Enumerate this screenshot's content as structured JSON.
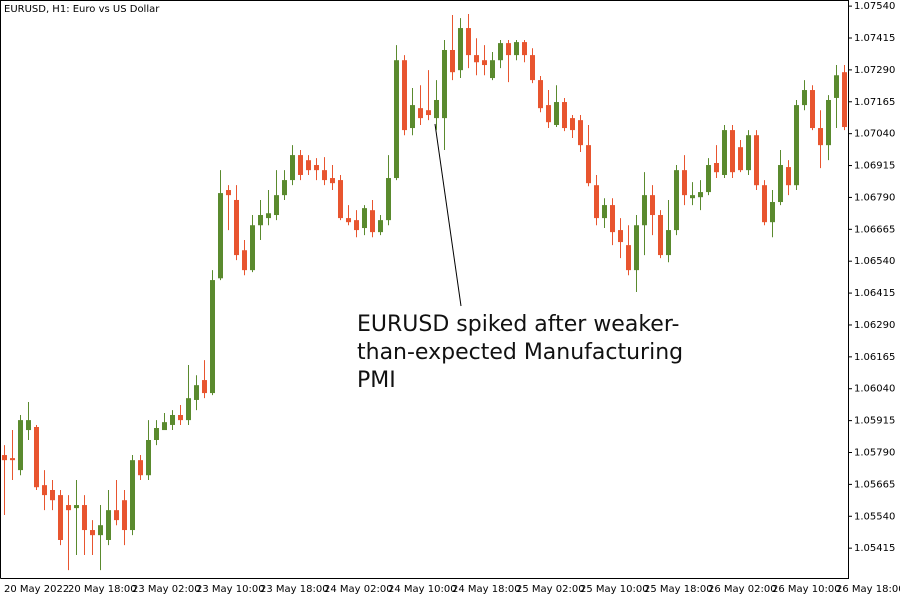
{
  "chart_data": {
    "type": "candlestick",
    "title": "EURUSD, H1:  Euro vs US Dollar",
    "annotation": [
      "EURUSD spiked after weaker-",
      "than-expected Manufacturing",
      "PMI"
    ],
    "up_color": "#5a8a2e",
    "down_color": "#e8552f",
    "categories": [
      "20 May 2022",
      null,
      null,
      null,
      null,
      null,
      null,
      null,
      "20 May 18:00",
      null,
      null,
      null,
      null,
      null,
      null,
      null,
      "23 May 02:00",
      null,
      null,
      null,
      null,
      null,
      null,
      null,
      "23 May 10:00",
      null,
      null,
      null,
      null,
      null,
      null,
      null,
      "23 May 18:00",
      null,
      null,
      null,
      null,
      null,
      null,
      null,
      "24 May 02:00",
      null,
      null,
      null,
      null,
      null,
      null,
      null,
      "24 May 10:00",
      null,
      null,
      null,
      null,
      null,
      null,
      null,
      "24 May 18:00",
      null,
      null,
      null,
      null,
      null,
      null,
      null,
      "25 May 02:00",
      null,
      null,
      null,
      null,
      null,
      null,
      null,
      "25 May 10:00",
      null,
      null,
      null,
      null,
      null,
      null,
      null,
      "25 May 18:00",
      null,
      null,
      null,
      null,
      null,
      null,
      null,
      "26 May 02:00",
      null,
      null,
      null,
      null,
      null,
      null,
      null,
      "26 May 10:00",
      null,
      null,
      null,
      null,
      null,
      null,
      null,
      "26 May 18:00",
      null
    ],
    "open": [
      1.0578,
      1.05768,
      1.05721,
      1.05878,
      1.0589,
      1.05662,
      1.05643,
      1.05623,
      1.05584,
      1.05572,
      1.05584,
      1.05486,
      1.05466,
      1.05447,
      1.05564,
      1.05603,
      1.05486,
      1.0576,
      1.05701,
      1.05839,
      1.05878,
      1.05898,
      1.05937,
      1.05917,
      1.05996,
      1.06074,
      1.06023,
      1.06473,
      1.06819,
      1.0678,
      1.06583,
      1.06505,
      1.06681,
      1.06709,
      1.06721,
      1.06799,
      1.06858,
      1.06956,
      1.06936,
      1.06917,
      1.06897,
      1.06866,
      1.06858,
      1.06709,
      1.06701,
      1.0667,
      1.0674,
      1.06654,
      1.06701,
      1.06866,
      1.07328,
      1.07062,
      1.0714,
      1.07132,
      1.07101,
      1.07101,
      1.07368,
      1.07289,
      1.07454,
      1.07348,
      1.07328,
      1.07258,
      1.07328,
      1.07395,
      1.07348,
      1.07399,
      1.07348,
      1.0725,
      1.07152,
      1.07074,
      1.07164,
      1.07101,
      1.07093,
      1.06995,
      1.06838,
      1.06709,
      1.0676,
      1.06662,
      1.06603,
      1.06505,
      1.06681,
      1.06799,
      1.06721,
      1.06564,
      1.06662,
      1.06897,
      1.06787,
      1.06791,
      1.06811,
      1.06925,
      1.06878,
      1.07054,
      1.06987,
      1.06897,
      1.07034,
      1.06838,
      1.06693,
      1.06772,
      1.06909,
      1.06838,
      1.07152,
      1.07211,
      1.07062,
      1.06995,
      1.0718,
      1.07281
    ],
    "high": [
      1.05819,
      1.05878,
      1.05937,
      1.05988,
      1.05898,
      1.05721,
      1.05682,
      1.05643,
      1.05623,
      1.05682,
      1.05623,
      1.05525,
      1.05584,
      1.05643,
      1.05682,
      1.05643,
      1.0578,
      1.0578,
      1.05917,
      1.05917,
      1.05945,
      1.05956,
      1.05976,
      1.06133,
      1.06093,
      1.06152,
      1.06505,
      1.06897,
      1.06838,
      1.06838,
      1.06623,
      1.06721,
      1.0678,
      1.06819,
      1.06897,
      1.06897,
      1.06995,
      1.06976,
      1.06956,
      1.06944,
      1.06948,
      1.06917,
      1.06878,
      1.0676,
      1.0674,
      1.0676,
      1.0678,
      1.06721,
      1.06956,
      1.07387,
      1.07348,
      1.07219,
      1.0723,
      1.07289,
      1.0725,
      1.07407,
      1.07505,
      1.07493,
      1.07509,
      1.07414,
      1.07387,
      1.0736,
      1.07407,
      1.07407,
      1.07407,
      1.07407,
      1.07375,
      1.07266,
      1.07211,
      1.0723,
      1.0718,
      1.07113,
      1.07113,
      1.07074,
      1.06878,
      1.06787,
      1.06787,
      1.06709,
      1.06681,
      1.06721,
      1.06889,
      1.06838,
      1.0674,
      1.0678,
      1.06917,
      1.06956,
      1.0685,
      1.06858,
      1.06944,
      1.06995,
      1.07074,
      1.07074,
      1.07015,
      1.07054,
      1.07054,
      1.06858,
      1.06819,
      1.06976,
      1.06936,
      1.07172,
      1.0725,
      1.0723,
      1.07132,
      1.07191,
      1.07309,
      1.07309
    ],
    "low": [
      1.05545,
      1.05682,
      1.05701,
      1.05839,
      1.05643,
      1.05564,
      1.05564,
      1.05427,
      1.05329,
      1.05388,
      1.05388,
      1.05388,
      1.05329,
      1.05427,
      1.05505,
      1.05427,
      1.05466,
      1.05682,
      1.05682,
      1.05819,
      1.05878,
      1.05878,
      1.05898,
      1.05898,
      1.05956,
      1.06003,
      1.06015,
      1.06466,
      1.06662,
      1.06544,
      1.06485,
      1.06497,
      1.06623,
      1.06681,
      1.06701,
      1.0678,
      1.06838,
      1.06858,
      1.06878,
      1.06858,
      1.06838,
      1.06819,
      1.06701,
      1.06681,
      1.06634,
      1.06642,
      1.06634,
      1.06642,
      1.06681,
      1.06858,
      1.07034,
      1.07034,
      1.07074,
      1.07093,
      1.07054,
      1.06976,
      1.0725,
      1.07258,
      1.07297,
      1.07269,
      1.07269,
      1.0725,
      1.07297,
      1.07242,
      1.07328,
      1.0732,
      1.07238,
      1.07124,
      1.07062,
      1.07066,
      1.0705,
      1.07023,
      1.06968,
      1.06834,
      1.06681,
      1.0667,
      1.06603,
      1.06552,
      1.06485,
      1.06419,
      1.06564,
      1.06642,
      1.06552,
      1.06536,
      1.06642,
      1.0676,
      1.0676,
      1.0674,
      1.06799,
      1.06866,
      1.06866,
      1.06866,
      1.06889,
      1.06878,
      1.06819,
      1.06681,
      1.06634,
      1.0676,
      1.06799,
      1.06819,
      1.07132,
      1.07054,
      1.06905,
      1.06936,
      1.07062,
      1.07054
    ],
    "close": [
      1.0576,
      1.0576,
      1.05917,
      1.05917,
      1.05654,
      1.05623,
      1.05603,
      1.05447,
      1.05564,
      1.05584,
      1.05486,
      1.05466,
      1.05505,
      1.05564,
      1.05525,
      1.05486,
      1.0576,
      1.05701,
      1.05839,
      1.05886,
      1.05909,
      1.05937,
      1.05917,
      1.06003,
      1.06054,
      1.06023,
      1.06466,
      1.06807,
      1.06799,
      1.06564,
      1.06505,
      1.06681,
      1.06721,
      1.06728,
      1.06799,
      1.06858,
      1.06956,
      1.06878,
      1.06897,
      1.06897,
      1.06858,
      1.06846,
      1.06709,
      1.06693,
      1.06662,
      1.06748,
      1.06654,
      1.06701,
      1.06866,
      1.07328,
      1.07054,
      1.07152,
      1.07101,
      1.07113,
      1.07172,
      1.07368,
      1.07281,
      1.07454,
      1.07348,
      1.0732,
      1.07309,
      1.07328,
      1.07395,
      1.07348,
      1.07399,
      1.07348,
      1.0725,
      1.0714,
      1.07085,
      1.07164,
      1.07062,
      1.07054,
      1.06995,
      1.06846,
      1.06709,
      1.0676,
      1.06654,
      1.06615,
      1.06505,
      1.06681,
      1.06799,
      1.06721,
      1.06564,
      1.06662,
      1.06897,
      1.06799,
      1.06799,
      1.06811,
      1.06917,
      1.06889,
      1.07054,
      1.06889,
      1.06897,
      1.07034,
      1.06838,
      1.06693,
      1.06772,
      1.06917,
      1.06838,
      1.07152,
      1.07211,
      1.07062,
      1.06995,
      1.07172,
      1.07269,
      1.07066
    ],
    "ylim": [
      1.05298,
      1.07564
    ],
    "yticks": [
      {
        "value": 1.0754,
        "label": "1.07540"
      },
      1.07415,
      {
        "value": 1.0729,
        "label": "1.07290"
      },
      1.07165,
      {
        "value": 1.0704,
        "label": "1.07040"
      },
      1.06915,
      {
        "value": 1.0679,
        "label": "1.06790"
      },
      1.06665,
      {
        "value": 1.0654,
        "label": "1.06540"
      },
      1.06415,
      {
        "value": 1.0629,
        "label": "1.06290"
      },
      1.06165,
      {
        "value": 1.0604,
        "label": "1.06040"
      },
      1.05915,
      {
        "value": 1.0579,
        "label": "1.05790"
      },
      1.05665,
      {
        "value": 1.0554,
        "label": "1.05540"
      },
      1.05415
    ]
  }
}
